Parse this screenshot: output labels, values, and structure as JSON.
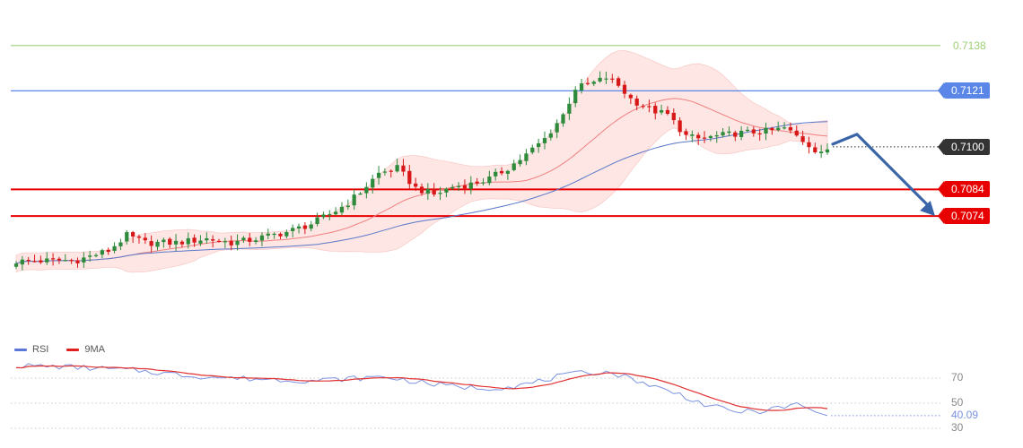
{
  "colors": {
    "bollinger_fill": "#fde2e0",
    "ma_fast": "#f08080",
    "ma_slow": "#5a78c8",
    "candle_up": "#2e8b3c",
    "candle_down": "#d81818",
    "support": "#e80000",
    "resistance_blue": "#5a86e8",
    "resistance_green": "#9ccf78",
    "current": "#333333",
    "arrow": "#3a64a8",
    "rsi": "#7b93e0",
    "rsi_ma": "#e03030"
  },
  "chart_data": [
    {
      "type": "candlestick",
      "ylim": [
        7030,
        7145
      ],
      "price_unit_divisor": 10000,
      "levels": [
        {
          "value": 0.7138,
          "label": "0.7138",
          "style": "line",
          "color_key": "resistance_green",
          "tag": "plain"
        },
        {
          "value": 0.7121,
          "label": "0.7121",
          "style": "line",
          "color_key": "resistance_blue",
          "tag": "filled"
        },
        {
          "value": 0.71,
          "label": "0.7100",
          "style": "dotted",
          "color_key": "current",
          "tag": "filled"
        },
        {
          "value": 0.7084,
          "label": "0.7084",
          "style": "thick",
          "color_key": "support",
          "tag": "filled"
        },
        {
          "value": 0.7074,
          "label": "0.7074",
          "style": "thick",
          "color_key": "support",
          "tag": "filled"
        }
      ],
      "anchors": [
        [
          0,
          7057
        ],
        [
          10,
          7057.5
        ],
        [
          15,
          7061
        ],
        [
          18,
          7066.7
        ],
        [
          21,
          7064
        ],
        [
          26,
          7064
        ],
        [
          31,
          7065.5
        ],
        [
          35,
          7064
        ],
        [
          38,
          7065
        ],
        [
          44,
          7068
        ],
        [
          48,
          7071
        ],
        [
          52,
          7076
        ],
        [
          54,
          7079
        ],
        [
          56,
          7083
        ],
        [
          59,
          7090
        ],
        [
          62,
          7092
        ],
        [
          65,
          7084.5
        ],
        [
          68,
          7082
        ],
        [
          71,
          7085
        ],
        [
          74,
          7086
        ],
        [
          77,
          7088
        ],
        [
          80,
          7092
        ],
        [
          83,
          7097
        ],
        [
          86,
          7103
        ],
        [
          89,
          7112
        ],
        [
          91,
          7122
        ],
        [
          94,
          7124
        ],
        [
          96,
          7126
        ],
        [
          98,
          7123
        ],
        [
          100,
          7118
        ],
        [
          103,
          7114
        ],
        [
          106,
          7112
        ],
        [
          109,
          7104
        ],
        [
          111,
          7103
        ],
        [
          114,
          7104
        ],
        [
          117,
          7105
        ],
        [
          120,
          7105.5
        ],
        [
          123,
          7106
        ],
        [
          125,
          7107
        ],
        [
          127,
          7104
        ],
        [
          130,
          7099
        ],
        [
          132,
          7098
        ]
      ],
      "arrow_prediction": {
        "from_value": 0.7101,
        "via_value": 0.7102,
        "to_value": 0.7074
      }
    },
    {
      "type": "line",
      "title": "",
      "series": [
        {
          "name": "RSI",
          "color_key": "rsi"
        },
        {
          "name": "9MA",
          "color_key": "rsi_ma"
        }
      ],
      "ylim": [
        30,
        80
      ],
      "reference_lines": [
        70,
        50,
        30
      ],
      "last_value": "40.09",
      "anchors": [
        [
          0,
          80
        ],
        [
          8,
          79
        ],
        [
          14,
          77.5
        ],
        [
          20,
          76
        ],
        [
          28,
          72
        ],
        [
          35,
          70
        ],
        [
          42,
          69
        ],
        [
          48,
          68
        ],
        [
          52,
          69
        ],
        [
          56,
          70
        ],
        [
          60,
          71
        ],
        [
          64,
          68
        ],
        [
          68,
          65
        ],
        [
          72,
          63
        ],
        [
          76,
          62
        ],
        [
          80,
          63
        ],
        [
          84,
          66
        ],
        [
          88,
          71
        ],
        [
          92,
          74
        ],
        [
          96,
          75
        ],
        [
          100,
          70
        ],
        [
          104,
          63
        ],
        [
          108,
          57
        ],
        [
          112,
          49
        ],
        [
          116,
          44
        ],
        [
          120,
          43
        ],
        [
          124,
          46
        ],
        [
          127,
          49
        ],
        [
          129,
          45
        ],
        [
          132,
          40.09
        ]
      ]
    }
  ]
}
